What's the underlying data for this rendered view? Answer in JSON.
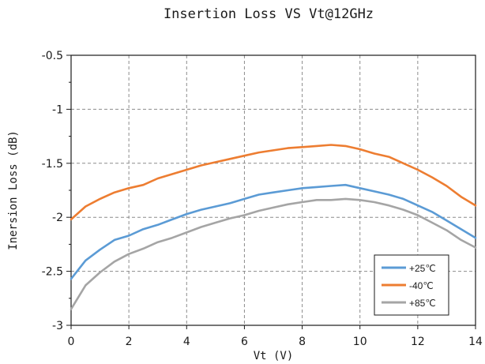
{
  "chart_data": {
    "type": "line",
    "title": "Insertion Loss VS Vt@12GHz",
    "xlabel": "Vt (V)",
    "ylabel": "Inersion Loss (dB)",
    "xlim": [
      0,
      14
    ],
    "ylim": [
      -3,
      -0.5
    ],
    "x_ticks": [
      0,
      2,
      4,
      6,
      8,
      10,
      12,
      14
    ],
    "y_ticks": [
      -3,
      -2.5,
      -2,
      -1.5,
      -1,
      -0.5
    ],
    "x_tick_labels": [
      "0",
      "2",
      "4",
      "6",
      "8",
      "10",
      "12",
      "14"
    ],
    "y_tick_labels": [
      "-3",
      "-2.5",
      "-2",
      "-1.5",
      "-1",
      "-0.5"
    ],
    "grid": true,
    "legend_position": "bottom-right",
    "x": [
      0,
      0.5,
      1,
      1.5,
      2,
      2.5,
      3,
      3.5,
      4,
      4.5,
      5,
      5.5,
      6,
      6.5,
      7,
      7.5,
      8,
      8.5,
      9,
      9.5,
      10,
      10.5,
      11,
      11.5,
      12,
      12.5,
      13,
      13.5,
      14
    ],
    "series": [
      {
        "name": "+25℃",
        "color": "#5b9bd5",
        "values": [
          -2.57,
          -2.4,
          -2.3,
          -2.21,
          -2.17,
          -2.11,
          -2.07,
          -2.02,
          -1.97,
          -1.93,
          -1.9,
          -1.87,
          -1.83,
          -1.79,
          -1.77,
          -1.75,
          -1.73,
          -1.72,
          -1.71,
          -1.7,
          -1.73,
          -1.76,
          -1.79,
          -1.83,
          -1.89,
          -1.95,
          -2.03,
          -2.11,
          -2.19
        ]
      },
      {
        "name": "-40℃",
        "color": "#ed7d31",
        "values": [
          -2.02,
          -1.9,
          -1.83,
          -1.77,
          -1.73,
          -1.7,
          -1.64,
          -1.6,
          -1.56,
          -1.52,
          -1.49,
          -1.46,
          -1.43,
          -1.4,
          -1.38,
          -1.36,
          -1.35,
          -1.34,
          -1.33,
          -1.34,
          -1.37,
          -1.41,
          -1.44,
          -1.5,
          -1.56,
          -1.63,
          -1.71,
          -1.81,
          -1.89
        ]
      },
      {
        "name": "+85℃",
        "color": "#a5a5a5",
        "values": [
          -2.85,
          -2.63,
          -2.51,
          -2.41,
          -2.34,
          -2.29,
          -2.23,
          -2.19,
          -2.14,
          -2.09,
          -2.05,
          -2.01,
          -1.98,
          -1.94,
          -1.91,
          -1.88,
          -1.86,
          -1.84,
          -1.84,
          -1.83,
          -1.84,
          -1.86,
          -1.89,
          -1.93,
          -1.98,
          -2.05,
          -2.12,
          -2.21,
          -2.28
        ]
      }
    ]
  }
}
